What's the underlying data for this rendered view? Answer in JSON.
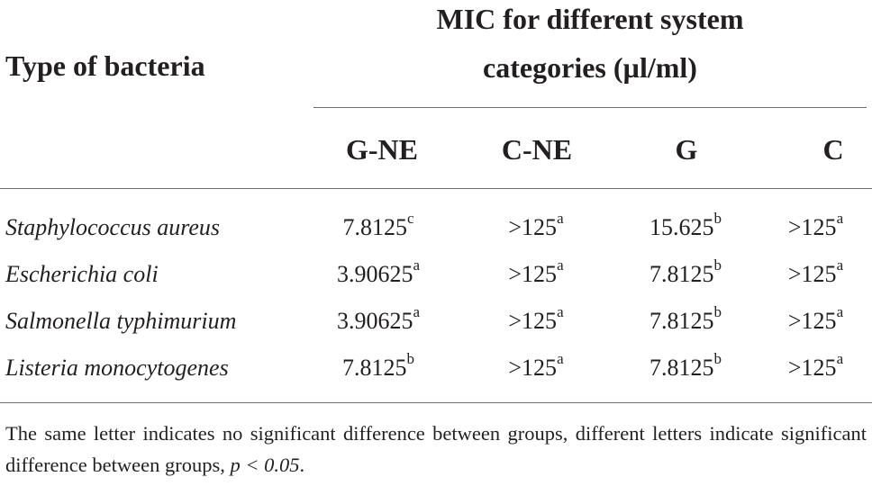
{
  "table": {
    "row_header": "Type of bacteria",
    "group_header_line1": "MIC for different system",
    "group_header_line2": "categories (µl/ml)",
    "columns": [
      "G-NE",
      "C-NE",
      "G",
      "C"
    ],
    "rows": [
      {
        "bacteria": "Staphylococcus aureus",
        "cells": [
          {
            "value": "7.8125",
            "sup": "c"
          },
          {
            "value": ">125",
            "sup": "a"
          },
          {
            "value": "15.625",
            "sup": "b"
          },
          {
            "value": ">125",
            "sup": "a"
          }
        ]
      },
      {
        "bacteria": "Escherichia coli",
        "cells": [
          {
            "value": "3.90625",
            "sup": "a"
          },
          {
            "value": ">125",
            "sup": "a"
          },
          {
            "value": "7.8125",
            "sup": "b"
          },
          {
            "value": ">125",
            "sup": "a"
          }
        ]
      },
      {
        "bacteria": "Salmonella typhimurium",
        "cells": [
          {
            "value": "3.90625",
            "sup": "a"
          },
          {
            "value": ">125",
            "sup": "a"
          },
          {
            "value": "7.8125",
            "sup": "b"
          },
          {
            "value": ">125",
            "sup": "a"
          }
        ]
      },
      {
        "bacteria": "Listeria monocytogenes",
        "cells": [
          {
            "value": "7.8125",
            "sup": "b"
          },
          {
            "value": ">125",
            "sup": "a"
          },
          {
            "value": "7.8125",
            "sup": "b"
          },
          {
            "value": ">125",
            "sup": "a"
          }
        ]
      }
    ],
    "footnote_text": "The same letter indicates no significant difference between groups, different letters indicate significant difference between groups, ",
    "footnote_p": "p",
    "footnote_threshold": " < 0.05",
    "footnote_end": "."
  }
}
